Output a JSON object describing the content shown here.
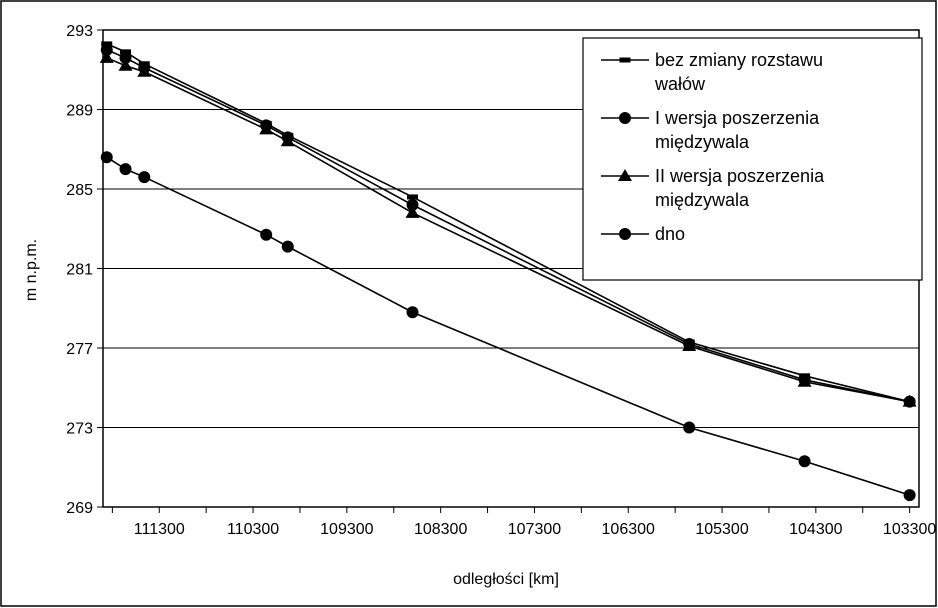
{
  "chart_data": {
    "type": "line",
    "title": "",
    "xlabel": "odległości [km]",
    "ylabel": "m n.p.m.",
    "xlim": [
      111900,
      103200
    ],
    "ylim": [
      269,
      293
    ],
    "x_ticks": [
      "111300",
      "110300",
      "109300",
      "108300",
      "107300",
      "106300",
      "105300",
      "104300",
      "103300"
    ],
    "y_ticks": [
      "269",
      "273",
      "277",
      "281",
      "285",
      "289",
      "293"
    ],
    "grid": "horizontal",
    "legend_position": "top-right",
    "series": [
      {
        "name": "bez zmiany rozstawu wałów",
        "legend_lines": [
          "bez zmiany rozstawu",
          "wałów"
        ],
        "marker": "square",
        "points": [
          [
            111860,
            292.3
          ],
          [
            111660,
            291.9
          ],
          [
            111460,
            291.3
          ],
          [
            110160,
            288.3
          ],
          [
            109930,
            287.7
          ],
          [
            108600,
            284.6
          ],
          [
            105650,
            277.3
          ],
          [
            104420,
            275.6
          ],
          [
            103300,
            274.3
          ]
        ]
      },
      {
        "name": "I wersja poszerzenia międzywala",
        "legend_lines": [
          "I wersja poszerzenia",
          "międzywala"
        ],
        "marker": "circle",
        "points": [
          [
            111860,
            292.0
          ],
          [
            111660,
            291.6
          ],
          [
            111460,
            291.1
          ],
          [
            110160,
            288.2
          ],
          [
            109930,
            287.6
          ],
          [
            108600,
            284.2
          ],
          [
            105650,
            277.2
          ],
          [
            104420,
            275.4
          ],
          [
            103300,
            274.3
          ]
        ]
      },
      {
        "name": "II wersja poszerzenia międzywala",
        "legend_lines": [
          "II wersja poszerzenia",
          "międzywala"
        ],
        "marker": "triangle",
        "points": [
          [
            111860,
            291.6
          ],
          [
            111660,
            291.2
          ],
          [
            111460,
            290.9
          ],
          [
            110160,
            288.0
          ],
          [
            109930,
            287.4
          ],
          [
            108600,
            283.8
          ],
          [
            105650,
            277.1
          ],
          [
            104420,
            275.3
          ],
          [
            103300,
            274.3
          ]
        ]
      },
      {
        "name": "dno",
        "legend_lines": [
          "dno"
        ],
        "marker": "circle",
        "points": [
          [
            111860,
            286.6
          ],
          [
            111660,
            286.0
          ],
          [
            111460,
            285.6
          ],
          [
            110160,
            282.7
          ],
          [
            109930,
            282.1
          ],
          [
            108600,
            278.8
          ],
          [
            105650,
            273.0
          ],
          [
            104420,
            271.3
          ],
          [
            103300,
            269.6
          ]
        ]
      }
    ]
  }
}
